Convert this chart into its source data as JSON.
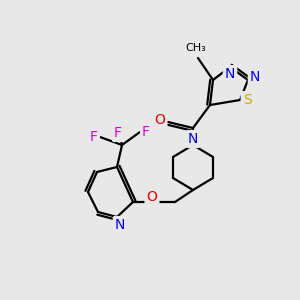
{
  "background_color": "#e8e8e8",
  "bond_color": "#000000",
  "atom_colors": {
    "N": "#0000ee",
    "O": "#ee0000",
    "S": "#ccaa00",
    "F": "#dd00dd",
    "C": "#000000"
  },
  "figsize": [
    3.0,
    3.0
  ],
  "dpi": 100,
  "lw": 1.6,
  "fs": 10
}
